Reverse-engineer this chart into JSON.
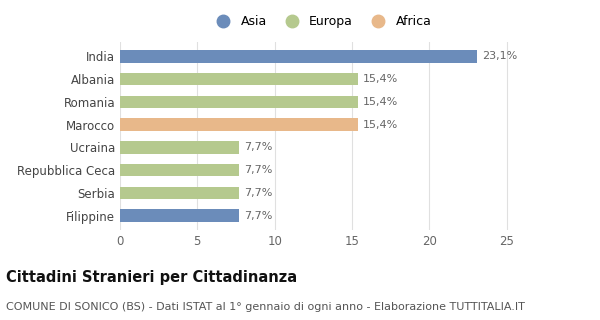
{
  "categories": [
    "India",
    "Albania",
    "Romania",
    "Marocco",
    "Ucraina",
    "Repubblica Ceca",
    "Serbia",
    "Filippine"
  ],
  "values": [
    23.1,
    15.4,
    15.4,
    15.4,
    7.7,
    7.7,
    7.7,
    7.7
  ],
  "labels": [
    "23,1%",
    "15,4%",
    "15,4%",
    "15,4%",
    "7,7%",
    "7,7%",
    "7,7%",
    "7,7%"
  ],
  "colors": [
    "#6b8cba",
    "#b5c98e",
    "#b5c98e",
    "#e8b88a",
    "#b5c98e",
    "#b5c98e",
    "#b5c98e",
    "#6b8cba"
  ],
  "legend": [
    {
      "label": "Asia",
      "color": "#6b8cba"
    },
    {
      "label": "Europa",
      "color": "#b5c98e"
    },
    {
      "label": "Africa",
      "color": "#e8b88a"
    }
  ],
  "xlim": [
    0,
    26
  ],
  "xticks": [
    0,
    5,
    10,
    15,
    20,
    25
  ],
  "title": "Cittadini Stranieri per Cittadinanza",
  "subtitle": "COMUNE DI SONICO (BS) - Dati ISTAT al 1° gennaio di ogni anno - Elaborazione TUTTITALIA.IT",
  "background_color": "#ffffff",
  "bar_height": 0.55,
  "label_fontsize": 8.0,
  "ytick_fontsize": 8.5,
  "xtick_fontsize": 8.5,
  "title_fontsize": 10.5,
  "subtitle_fontsize": 8.0
}
